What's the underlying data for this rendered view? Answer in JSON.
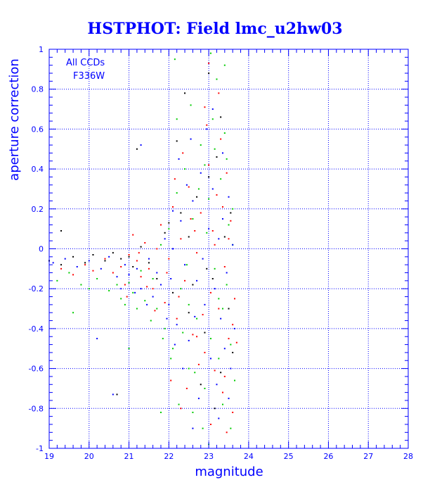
{
  "chart_data": {
    "type": "scatter",
    "title": "HSTPHOT: Field lmc_u2hw03",
    "xlabel": "magnitude",
    "ylabel": "aperture correction",
    "xlim": [
      19,
      28
    ],
    "ylim": [
      -1,
      1
    ],
    "x_ticks": [
      19,
      20,
      21,
      22,
      23,
      24,
      25,
      26,
      27,
      28
    ],
    "y_ticks": [
      -1,
      -0.8,
      -0.6,
      -0.4,
      -0.2,
      0,
      0.2,
      0.4,
      0.6,
      0.8,
      1
    ],
    "x_tick_labels": [
      "19",
      "20",
      "21",
      "22",
      "23",
      "24",
      "25",
      "26",
      "27",
      "28"
    ],
    "y_tick_labels": [
      "-1",
      "-0.8",
      "-0.6",
      "-0.4",
      "-0.2",
      "0",
      "0.2",
      "0.4",
      "0.6",
      "0.8",
      "1"
    ],
    "grid": true,
    "annotations": [
      "All CCDs",
      "F336W"
    ],
    "colors": {
      "axis": "#0000ff",
      "grid": "#0000ff",
      "title": "#0000ff",
      "series": [
        "#ff0000",
        "#00cc00",
        "#0000ff",
        "#000000"
      ]
    },
    "series": [
      {
        "color": "#ff0000",
        "points": [
          [
            19.3,
            -0.1
          ],
          [
            19.6,
            -0.13
          ],
          [
            19.9,
            -0.08
          ],
          [
            20.1,
            -0.11
          ],
          [
            20.4,
            -0.05
          ],
          [
            20.6,
            -0.12
          ],
          [
            20.8,
            -0.09
          ],
          [
            20.9,
            -0.18
          ],
          [
            21.0,
            -0.03
          ],
          [
            21.1,
            0.07
          ],
          [
            21.2,
            -0.06
          ],
          [
            21.3,
            -0.14
          ],
          [
            21.4,
            0.03
          ],
          [
            21.5,
            -0.1
          ],
          [
            21.6,
            -0.2
          ],
          [
            21.7,
            0.0
          ],
          [
            21.8,
            0.12
          ],
          [
            21.9,
            -0.27
          ],
          [
            22.0,
            -0.05
          ],
          [
            22.1,
            0.21
          ],
          [
            22.2,
            -0.35
          ],
          [
            22.3,
            0.05
          ],
          [
            22.4,
            -0.16
          ],
          [
            22.5,
            0.31
          ],
          [
            22.6,
            -0.43
          ],
          [
            22.7,
            -0.02
          ],
          [
            22.8,
            0.18
          ],
          [
            22.9,
            -0.52
          ],
          [
            23.0,
            0.42
          ],
          [
            23.05,
            -0.22
          ],
          [
            23.1,
            0.09
          ],
          [
            23.15,
            -0.61
          ],
          [
            23.2,
            0.27
          ],
          [
            23.25,
            -0.3
          ],
          [
            23.3,
            0.55
          ],
          [
            23.35,
            -0.72
          ],
          [
            23.4,
            -0.09
          ],
          [
            23.45,
            0.38
          ],
          [
            23.5,
            -0.45
          ],
          [
            23.55,
            0.14
          ],
          [
            23.6,
            -0.82
          ],
          [
            23.65,
            -0.25
          ],
          [
            22.05,
            -0.66
          ],
          [
            22.35,
            0.48
          ],
          [
            22.75,
            -0.58
          ],
          [
            22.95,
            0.62
          ],
          [
            23.25,
            0.78
          ],
          [
            23.45,
            -0.92
          ],
          [
            21.95,
            -0.12
          ],
          [
            22.65,
            0.09
          ],
          [
            23.15,
            0.02
          ],
          [
            22.25,
            -0.24
          ],
          [
            22.85,
            -0.33
          ],
          [
            23.35,
            0.21
          ],
          [
            21.45,
            -0.19
          ],
          [
            20.95,
            -0.24
          ],
          [
            22.45,
            -0.7
          ],
          [
            23.05,
            -0.88
          ],
          [
            22.15,
            0.35
          ],
          [
            22.55,
            0.15
          ],
          [
            23.5,
            0.05
          ],
          [
            23.6,
            -0.38
          ],
          [
            23.7,
            -0.47
          ],
          [
            21.25,
            -0.02
          ],
          [
            21.65,
            -0.31
          ],
          [
            22.9,
            0.71
          ],
          [
            23.0,
            0.93
          ],
          [
            23.4,
            -0.64
          ],
          [
            22.7,
            -0.44
          ],
          [
            22.3,
            -0.8
          ]
        ]
      },
      {
        "color": "#00cc00",
        "points": [
          [
            19.2,
            -0.16
          ],
          [
            19.5,
            -0.12
          ],
          [
            19.8,
            -0.18
          ],
          [
            20.0,
            -0.2
          ],
          [
            20.2,
            -0.15
          ],
          [
            20.5,
            -0.21
          ],
          [
            20.7,
            -0.18
          ],
          [
            20.8,
            -0.25
          ],
          [
            21.0,
            -0.17
          ],
          [
            21.1,
            -0.22
          ],
          [
            21.3,
            -0.11
          ],
          [
            21.4,
            -0.26
          ],
          [
            21.6,
            -0.15
          ],
          [
            21.7,
            -0.3
          ],
          [
            21.8,
            0.02
          ],
          [
            21.9,
            -0.4
          ],
          [
            22.0,
            0.1
          ],
          [
            22.1,
            -0.5
          ],
          [
            22.2,
            0.28
          ],
          [
            22.3,
            -0.2
          ],
          [
            22.4,
            0.4
          ],
          [
            22.5,
            -0.6
          ],
          [
            22.6,
            0.15
          ],
          [
            22.7,
            -0.35
          ],
          [
            22.8,
            0.52
          ],
          [
            22.9,
            -0.7
          ],
          [
            23.0,
            0.25
          ],
          [
            23.05,
            -0.45
          ],
          [
            23.1,
            0.65
          ],
          [
            23.15,
            -0.1
          ],
          [
            23.2,
            0.85
          ],
          [
            23.25,
            -0.55
          ],
          [
            23.3,
            0.35
          ],
          [
            23.35,
            -0.3
          ],
          [
            23.4,
            0.58
          ],
          [
            23.45,
            -0.18
          ],
          [
            23.5,
            0.12
          ],
          [
            23.55,
            -0.48
          ],
          [
            23.6,
            0.2
          ],
          [
            23.65,
            -0.66
          ],
          [
            22.25,
            -0.78
          ],
          [
            22.55,
            0.72
          ],
          [
            22.85,
            -0.9
          ],
          [
            23.05,
            0.98
          ],
          [
            22.15,
            0.95
          ],
          [
            22.45,
            -0.08
          ],
          [
            22.65,
            -0.62
          ],
          [
            22.95,
            0.08
          ],
          [
            23.25,
            -0.25
          ],
          [
            23.45,
            0.45
          ],
          [
            21.55,
            -0.36
          ],
          [
            21.2,
            -0.3
          ],
          [
            20.9,
            -0.28
          ],
          [
            22.35,
            -0.42
          ],
          [
            22.75,
            0.3
          ],
          [
            23.35,
            -0.78
          ],
          [
            23.55,
            -0.9
          ],
          [
            22.05,
            -0.55
          ],
          [
            21.85,
            -0.45
          ],
          [
            23.15,
            0.5
          ],
          [
            22.6,
            -0.82
          ],
          [
            22.9,
            0.42
          ],
          [
            23.6,
            0.02
          ],
          [
            19.6,
            -0.32
          ],
          [
            21.0,
            -0.5
          ],
          [
            21.8,
            -0.82
          ],
          [
            22.2,
            0.65
          ],
          [
            23.0,
            -0.98
          ],
          [
            23.4,
            0.92
          ],
          [
            22.5,
            -0.28
          ]
        ]
      },
      {
        "color": "#0000ff",
        "points": [
          [
            19.1,
            -0.07
          ],
          [
            19.4,
            -0.05
          ],
          [
            19.7,
            -0.09
          ],
          [
            20.0,
            -0.06
          ],
          [
            20.3,
            -0.1
          ],
          [
            20.5,
            -0.04
          ],
          [
            20.7,
            -0.14
          ],
          [
            20.9,
            -0.08
          ],
          [
            21.0,
            -0.13
          ],
          [
            21.2,
            -0.1
          ],
          [
            21.3,
            -0.2
          ],
          [
            21.5,
            -0.05
          ],
          [
            21.6,
            -0.24
          ],
          [
            21.7,
            -0.12
          ],
          [
            21.8,
            -0.18
          ],
          [
            21.9,
            0.05
          ],
          [
            22.0,
            -0.28
          ],
          [
            22.1,
            0.0
          ],
          [
            22.2,
            -0.38
          ],
          [
            22.3,
            0.14
          ],
          [
            22.4,
            -0.08
          ],
          [
            22.5,
            -0.46
          ],
          [
            22.6,
            0.24
          ],
          [
            22.7,
            -0.16
          ],
          [
            22.8,
            0.38
          ],
          [
            22.9,
            -0.28
          ],
          [
            23.0,
            0.1
          ],
          [
            23.05,
            -0.55
          ],
          [
            23.1,
            0.3
          ],
          [
            23.15,
            -0.2
          ],
          [
            23.2,
            -0.68
          ],
          [
            23.25,
            0.05
          ],
          [
            23.3,
            -0.35
          ],
          [
            23.35,
            0.48
          ],
          [
            23.4,
            -0.5
          ],
          [
            23.45,
            -0.12
          ],
          [
            23.5,
            0.26
          ],
          [
            23.55,
            -0.6
          ],
          [
            23.6,
            0.02
          ],
          [
            23.65,
            -0.4
          ],
          [
            22.35,
            -0.6
          ],
          [
            22.55,
            0.55
          ],
          [
            22.75,
            -0.75
          ],
          [
            22.95,
            0.6
          ],
          [
            23.25,
            -0.85
          ],
          [
            22.15,
            -0.48
          ],
          [
            22.45,
            0.32
          ],
          [
            22.85,
            -0.05
          ],
          [
            21.45,
            -0.28
          ],
          [
            21.15,
            -0.22
          ],
          [
            20.8,
            -0.2
          ],
          [
            22.05,
            -0.15
          ],
          [
            22.65,
            -0.34
          ],
          [
            23.35,
            0.15
          ],
          [
            23.1,
            0.7
          ],
          [
            22.25,
            0.45
          ],
          [
            21.95,
            -0.35
          ],
          [
            23.5,
            -0.75
          ],
          [
            22.6,
            -0.9
          ],
          [
            20.6,
            -0.73
          ],
          [
            20.2,
            -0.45
          ],
          [
            21.3,
            0.52
          ],
          [
            22.1,
            0.19
          ]
        ]
      },
      {
        "color": "#000000",
        "points": [
          [
            19.0,
            -0.06
          ],
          [
            19.3,
            -0.08
          ],
          [
            19.6,
            -0.04
          ],
          [
            19.9,
            -0.07
          ],
          [
            20.1,
            -0.03
          ],
          [
            20.4,
            -0.06
          ],
          [
            20.6,
            -0.02
          ],
          [
            20.8,
            -0.05
          ],
          [
            21.0,
            -0.04
          ],
          [
            21.1,
            -0.09
          ],
          [
            21.3,
            0.01
          ],
          [
            21.5,
            -0.07
          ],
          [
            21.7,
            -0.15
          ],
          [
            21.9,
            0.08
          ],
          [
            22.1,
            -0.22
          ],
          [
            22.3,
            0.18
          ],
          [
            22.5,
            -0.32
          ],
          [
            22.7,
            0.26
          ],
          [
            22.9,
            -0.42
          ],
          [
            23.0,
            0.36
          ],
          [
            23.1,
            -0.15
          ],
          [
            23.2,
            0.46
          ],
          [
            23.3,
            -0.62
          ],
          [
            23.4,
            0.06
          ],
          [
            23.5,
            -0.3
          ],
          [
            23.6,
            -0.52
          ],
          [
            22.2,
            0.54
          ],
          [
            22.6,
            -0.18
          ],
          [
            22.8,
            -0.68
          ],
          [
            23.0,
            0.88
          ],
          [
            22.4,
            0.78
          ],
          [
            23.3,
            0.66
          ],
          [
            21.2,
            0.5
          ],
          [
            22.0,
            0.13
          ],
          [
            23.15,
            -0.8
          ],
          [
            22.95,
            -0.1
          ],
          [
            20.7,
            -0.73
          ],
          [
            19.3,
            0.09
          ],
          [
            23.55,
            0.18
          ],
          [
            22.5,
            0.06
          ]
        ]
      }
    ]
  }
}
